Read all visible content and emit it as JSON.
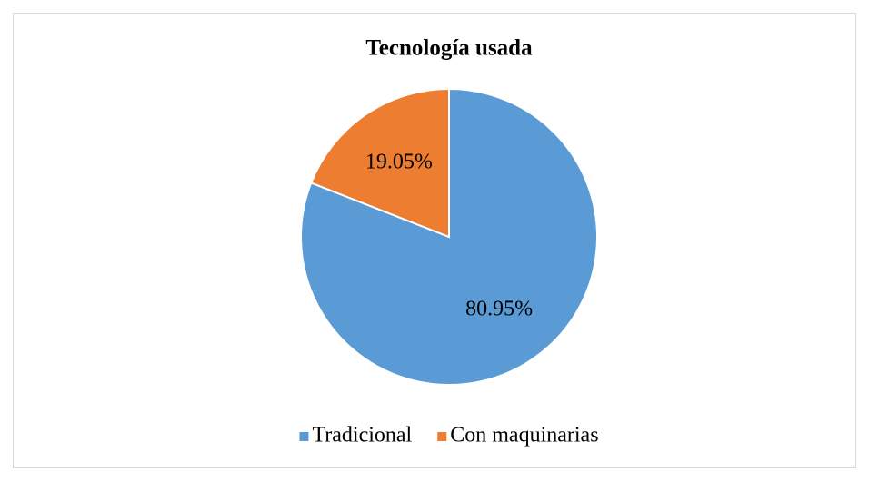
{
  "chart_data": {
    "type": "pie",
    "title": "Tecnología usada",
    "categories": [
      "Tradicional",
      "Con maquinarias"
    ],
    "values": [
      80.95,
      19.05
    ],
    "value_labels": [
      "80.95%",
      "19.05%"
    ],
    "colors": [
      "#5b9bd5",
      "#ed7d31"
    ],
    "legend": "bottom"
  }
}
